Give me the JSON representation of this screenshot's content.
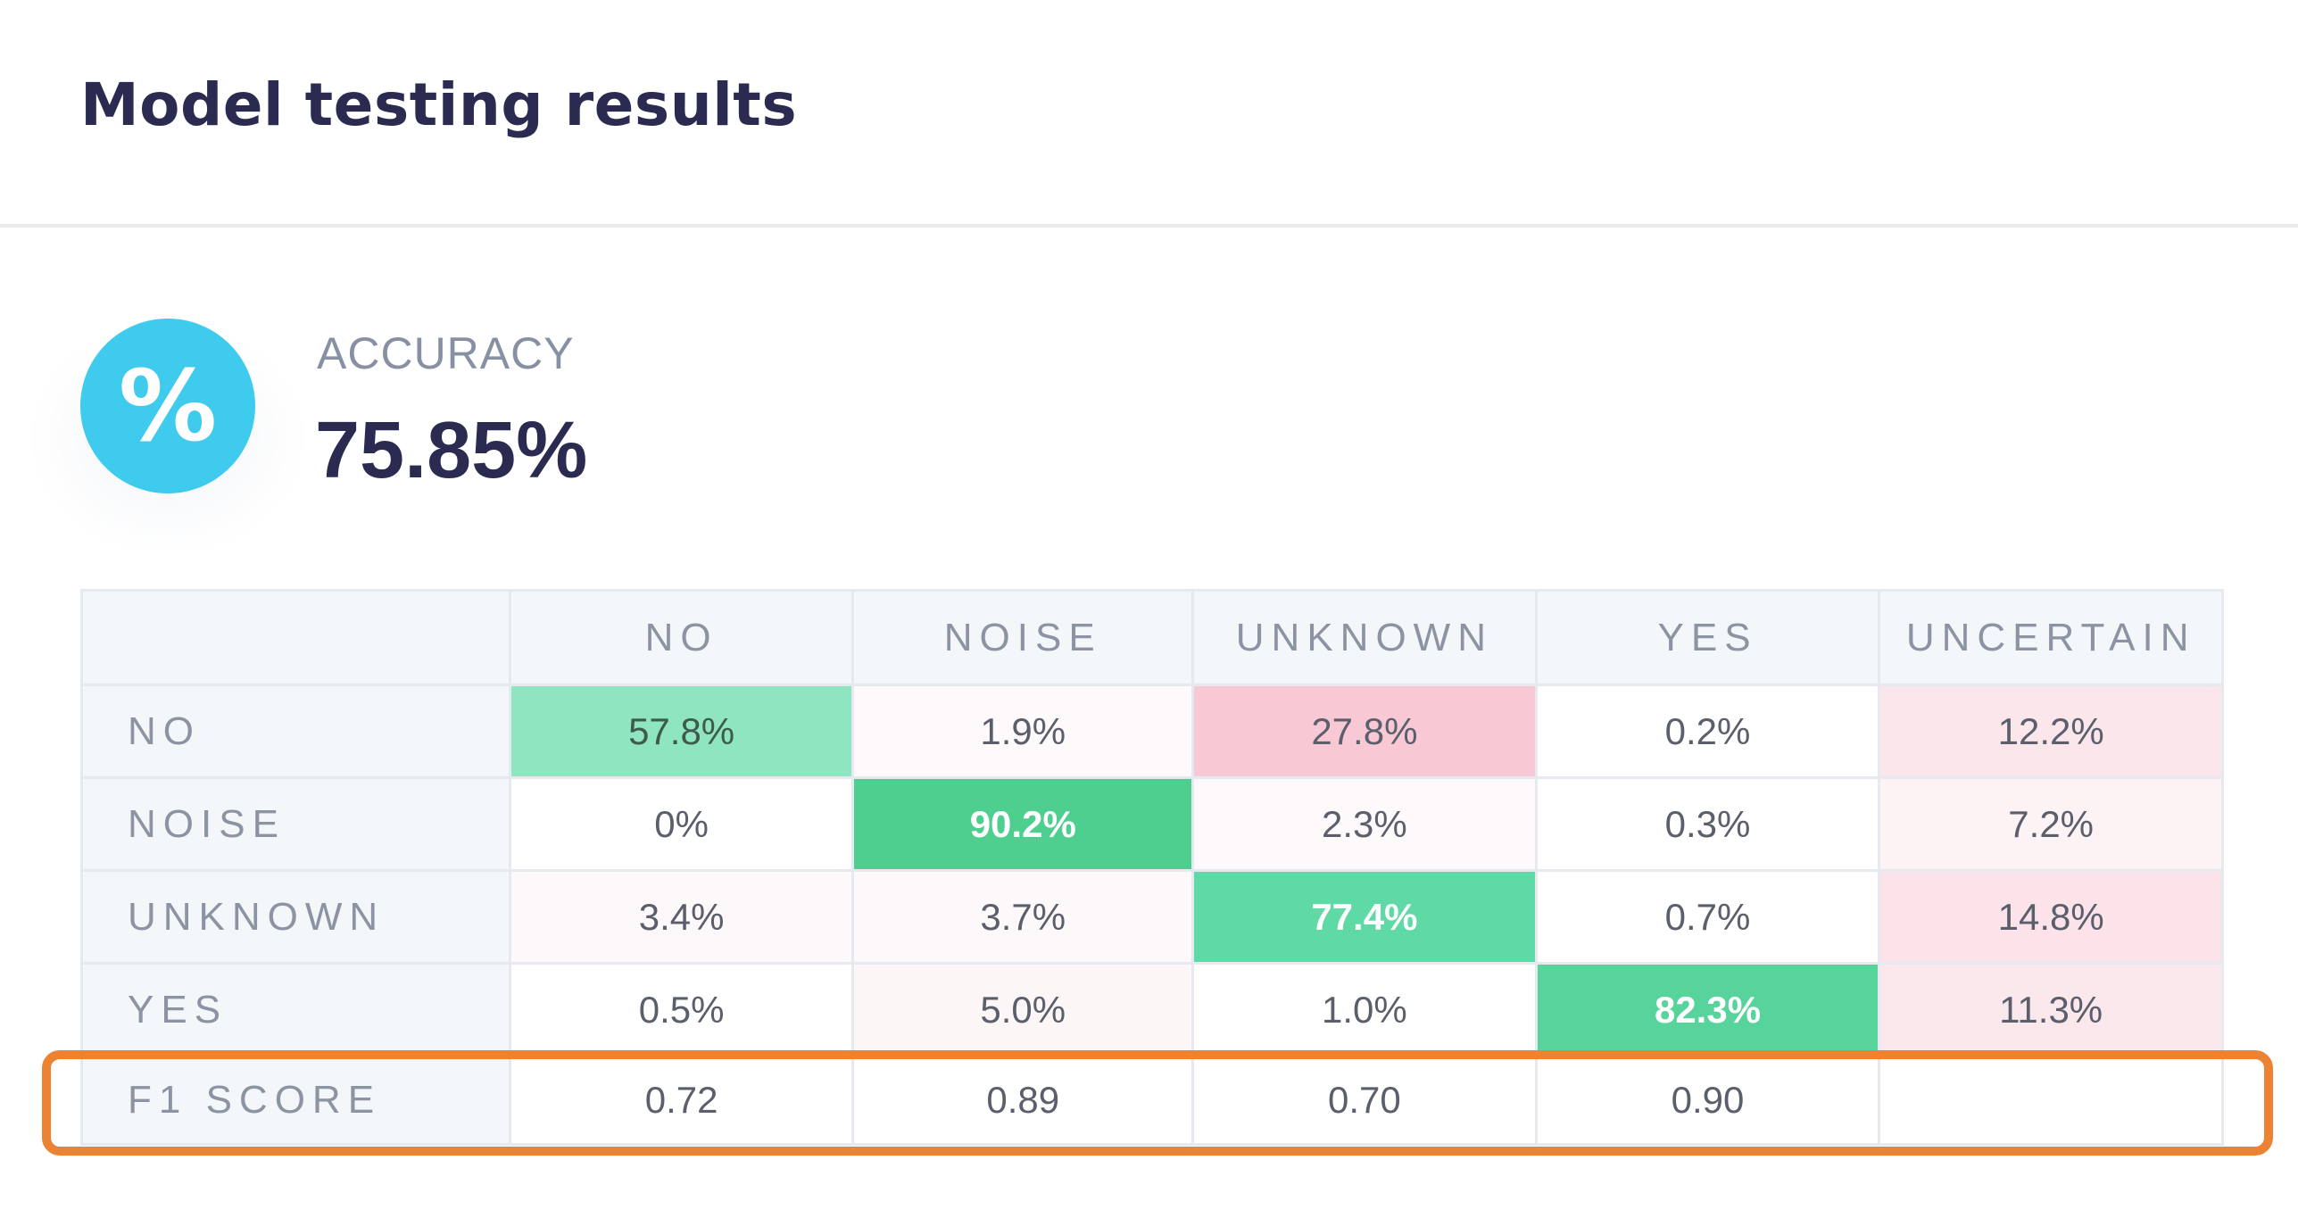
{
  "title": "Model testing results",
  "accuracy": {
    "icon_glyph": "%",
    "icon": "percent-icon",
    "label": "ACCURACY",
    "value": "75.85%"
  },
  "colors": {
    "accent_circle": "#3fcbee",
    "highlight_border": "#ec8333",
    "correct_strong": "#4fcf8f",
    "correct_light": "#8ee5c0",
    "confusion_strong": "#f8c9d4",
    "confusion_light": "#fbe6eb",
    "confusion_faint": "#fdf6f7"
  },
  "matrix": {
    "columns": [
      "NO",
      "NOISE",
      "UNKNOWN",
      "YES",
      "UNCERTAIN"
    ],
    "rows": [
      {
        "label": "NO",
        "cells": [
          "57.8%",
          "1.9%",
          "27.8%",
          "0.2%",
          "12.2%"
        ]
      },
      {
        "label": "NOISE",
        "cells": [
          "0%",
          "90.2%",
          "2.3%",
          "0.3%",
          "7.2%"
        ]
      },
      {
        "label": "UNKNOWN",
        "cells": [
          "3.4%",
          "3.7%",
          "77.4%",
          "0.7%",
          "14.8%"
        ]
      },
      {
        "label": "YES",
        "cells": [
          "0.5%",
          "5.0%",
          "1.0%",
          "82.3%",
          "11.3%"
        ]
      }
    ],
    "f1": {
      "label": "F1 SCORE",
      "cells": [
        "0.72",
        "0.89",
        "0.70",
        "0.90",
        ""
      ]
    }
  }
}
